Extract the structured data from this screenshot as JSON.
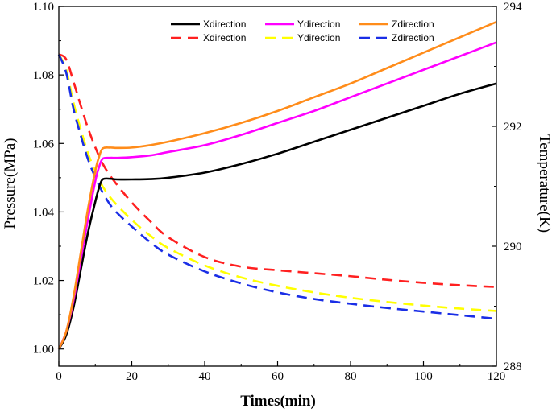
{
  "chart_data": {
    "type": "line",
    "title": "",
    "xlabel": "Times(min)",
    "ylabel_left": "Pressure(MPa)",
    "ylabel_right": "Temperature(K)",
    "xlim": [
      0,
      120
    ],
    "ylim_left": [
      0.995,
      1.1
    ],
    "ylim_right": [
      288,
      294
    ],
    "x_ticks": [
      0,
      20,
      40,
      60,
      80,
      100,
      120
    ],
    "y_left_ticks": [
      1.0,
      1.02,
      1.04,
      1.06,
      1.08,
      1.1
    ],
    "y_left_tick_labels": [
      "1.00",
      "1.02",
      "1.04",
      "1.06",
      "1.08",
      "1.10"
    ],
    "y_right_ticks": [
      288,
      290,
      292,
      294
    ],
    "grid": false,
    "legend_position": "top-center",
    "series": [
      {
        "name": "Xdirection",
        "axis": "left",
        "style": "solid",
        "color": "#000000",
        "x": [
          0,
          2,
          4,
          6,
          8,
          10,
          11,
          12,
          14,
          16,
          20,
          25,
          30,
          40,
          50,
          60,
          70,
          80,
          90,
          100,
          110,
          120
        ],
        "values": [
          1.0,
          1.004,
          1.012,
          1.023,
          1.034,
          1.043,
          1.047,
          1.0495,
          1.0497,
          1.0495,
          1.0495,
          1.0496,
          1.05,
          1.0515,
          1.054,
          1.057,
          1.0605,
          1.064,
          1.0675,
          1.071,
          1.0745,
          1.0775
        ]
      },
      {
        "name": "Ydirection",
        "axis": "left",
        "style": "solid",
        "color": "#ff00ff",
        "x": [
          0,
          2,
          4,
          6,
          8,
          10,
          11,
          12,
          14,
          16,
          20,
          25,
          30,
          40,
          50,
          60,
          70,
          80,
          90,
          100,
          110,
          120
        ],
        "values": [
          1.0,
          1.005,
          1.014,
          1.026,
          1.038,
          1.049,
          1.053,
          1.0555,
          1.0558,
          1.0558,
          1.056,
          1.0565,
          1.0575,
          1.0595,
          1.0625,
          1.066,
          1.0695,
          1.0735,
          1.0775,
          1.0815,
          1.0855,
          1.0895
        ]
      },
      {
        "name": "Zdirection",
        "axis": "left",
        "style": "solid",
        "color": "#ff8c1a",
        "x": [
          0,
          2,
          4,
          6,
          8,
          10,
          11,
          12,
          14,
          16,
          20,
          25,
          30,
          40,
          50,
          60,
          70,
          80,
          90,
          100,
          110,
          120
        ],
        "values": [
          1.0,
          1.005,
          1.015,
          1.028,
          1.041,
          1.052,
          1.056,
          1.0585,
          1.0588,
          1.0587,
          1.0588,
          1.0595,
          1.0605,
          1.063,
          1.066,
          1.0695,
          1.0735,
          1.0775,
          1.082,
          1.0865,
          1.091,
          1.0955
        ]
      },
      {
        "name": "Xdirection",
        "axis": "right",
        "style": "dashed",
        "color": "#ff2020",
        "x": [
          0,
          2,
          4,
          6,
          8,
          10,
          12,
          15,
          20,
          25,
          30,
          40,
          50,
          60,
          70,
          80,
          90,
          100,
          110,
          120
        ],
        "values": [
          293.2,
          293.12,
          292.75,
          292.35,
          291.97,
          291.65,
          291.38,
          291.1,
          290.73,
          290.42,
          290.15,
          289.82,
          289.66,
          289.6,
          289.55,
          289.5,
          289.44,
          289.39,
          289.35,
          289.32
        ]
      },
      {
        "name": "Ydirection",
        "axis": "right",
        "style": "dashed",
        "color": "#ffff00",
        "x": [
          0,
          2,
          4,
          6,
          8,
          10,
          12,
          15,
          20,
          25,
          30,
          40,
          50,
          60,
          70,
          80,
          90,
          100,
          110,
          120
        ],
        "values": [
          293.2,
          292.95,
          292.4,
          291.95,
          291.55,
          291.25,
          291.0,
          290.75,
          290.44,
          290.18,
          289.97,
          289.68,
          289.48,
          289.34,
          289.23,
          289.14,
          289.07,
          289.01,
          288.96,
          288.92
        ]
      },
      {
        "name": "Zdirection",
        "axis": "right",
        "style": "dashed",
        "color": "#1a2ee6",
        "x": [
          0,
          2,
          4,
          6,
          8,
          10,
          12,
          15,
          20,
          25,
          30,
          40,
          50,
          60,
          70,
          80,
          90,
          100,
          110,
          120
        ],
        "values": [
          293.2,
          292.9,
          292.3,
          291.85,
          291.45,
          291.15,
          290.9,
          290.62,
          290.33,
          290.07,
          289.86,
          289.58,
          289.38,
          289.23,
          289.12,
          289.04,
          288.97,
          288.91,
          288.85,
          288.79
        ]
      }
    ]
  }
}
